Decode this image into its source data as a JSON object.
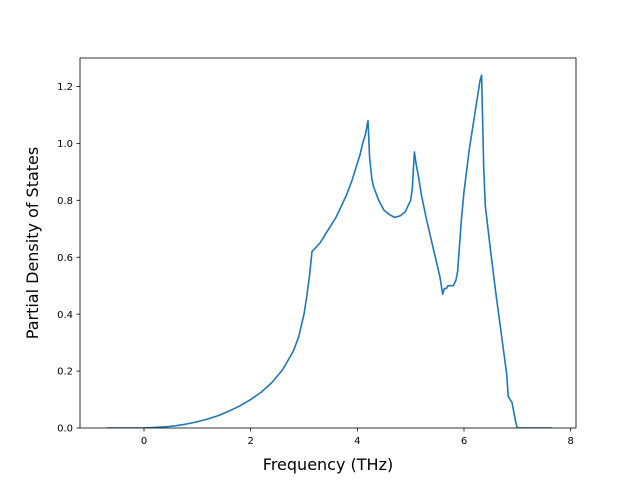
{
  "chart_data": {
    "type": "line",
    "title": "",
    "xlabel": "Frequency (THz)",
    "ylabel": "Partial Density of States",
    "xlim": [
      -1.2,
      8.1
    ],
    "ylim": [
      0.0,
      1.3
    ],
    "x_ticks": [
      0,
      2,
      4,
      6,
      8
    ],
    "y_ticks": [
      0.0,
      0.2,
      0.4,
      0.6,
      0.8,
      1.0,
      1.2
    ],
    "x_tick_labels": [
      "0",
      "2",
      "4",
      "6",
      "8"
    ],
    "y_tick_labels": [
      "0.0",
      "0.2",
      "0.4",
      "0.6",
      "0.8",
      "1.0",
      "1.2"
    ],
    "grid": false,
    "legend": "none",
    "colors": {
      "series": "#1f77b4"
    },
    "series": [
      {
        "x": [
          -0.7,
          -0.5,
          0.0,
          0.2,
          0.4,
          0.6,
          0.8,
          1.0,
          1.2,
          1.4,
          1.6,
          1.8,
          2.0,
          2.2,
          2.4,
          2.6,
          2.8,
          2.9,
          3.0,
          3.05,
          3.1,
          3.15,
          3.2,
          3.3,
          3.4,
          3.5,
          3.6,
          3.7,
          3.8,
          3.9,
          4.0,
          4.05,
          4.1,
          4.15,
          4.2,
          4.23,
          4.27,
          4.3,
          4.4,
          4.5,
          4.6,
          4.7,
          4.8,
          4.9,
          5.0,
          5.03,
          5.07,
          5.1,
          5.15,
          5.2,
          5.3,
          5.4,
          5.5,
          5.55,
          5.6,
          5.63,
          5.67,
          5.7,
          5.8,
          5.85,
          5.88,
          5.9,
          5.95,
          6.0,
          6.1,
          6.2,
          6.3,
          6.33,
          6.37,
          6.4,
          6.5,
          6.6,
          6.7,
          6.8,
          6.83,
          6.9,
          6.93,
          6.97,
          7.0,
          7.3,
          7.65
        ],
        "y": [
          0.0,
          0.0,
          0.0,
          0.002,
          0.004,
          0.008,
          0.014,
          0.022,
          0.032,
          0.044,
          0.06,
          0.078,
          0.1,
          0.126,
          0.16,
          0.205,
          0.27,
          0.32,
          0.4,
          0.46,
          0.53,
          0.62,
          0.63,
          0.65,
          0.68,
          0.71,
          0.74,
          0.78,
          0.82,
          0.87,
          0.93,
          0.96,
          1.0,
          1.03,
          1.08,
          0.95,
          0.88,
          0.85,
          0.8,
          0.765,
          0.75,
          0.74,
          0.745,
          0.76,
          0.8,
          0.84,
          0.97,
          0.93,
          0.88,
          0.82,
          0.73,
          0.65,
          0.57,
          0.53,
          0.47,
          0.49,
          0.49,
          0.5,
          0.5,
          0.52,
          0.55,
          0.6,
          0.73,
          0.83,
          0.98,
          1.1,
          1.22,
          1.24,
          0.91,
          0.78,
          0.62,
          0.47,
          0.33,
          0.19,
          0.11,
          0.09,
          0.06,
          0.02,
          0.0,
          0.0,
          0.0
        ]
      }
    ]
  }
}
